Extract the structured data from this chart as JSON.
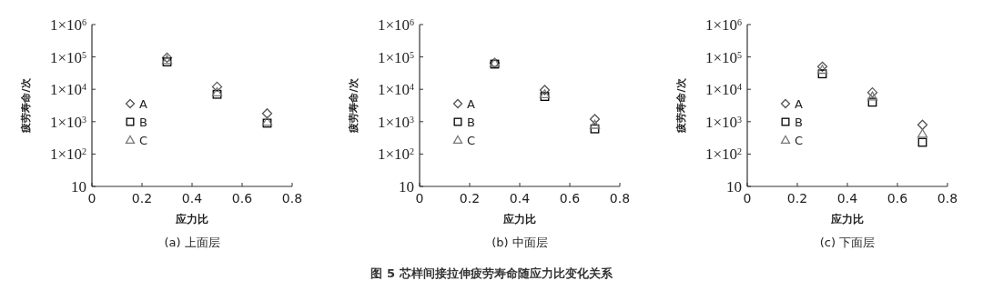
{
  "chart_data": [
    {
      "type": "scatter",
      "title": "(a) 上面层",
      "xlabel": "应力比",
      "ylabel": "疲劳寿命/次",
      "log": "y",
      "legend": "left",
      "x": [
        0.3,
        0.5,
        0.7
      ],
      "xlim": [
        0,
        0.8
      ],
      "xticks": [
        0,
        0.2,
        0.4,
        0.6,
        0.8
      ],
      "ylim": [
        10,
        1000000
      ],
      "yticks": [
        {
          "value": 10,
          "label": "10"
        },
        {
          "value": 100,
          "label": "1×10$^{2}$"
        },
        {
          "value": 1000,
          "label": "1×10$^{3}$"
        },
        {
          "value": 10000,
          "label": "1×10$^{4}$"
        },
        {
          "value": 100000,
          "label": "1×10$^{5}$"
        },
        {
          "value": 1000000,
          "label": "1×10$^{6}$"
        }
      ],
      "series": [
        {
          "name": "A",
          "color": "#555555",
          "marker": "diamond",
          "values": [
            95000,
            12000,
            1800
          ]
        },
        {
          "name": "B",
          "color": "#000000",
          "marker": "square",
          "values": [
            70000,
            7000,
            900
          ]
        },
        {
          "name": "C",
          "color": "#777777",
          "marker": "triangle",
          "values": [
            80000,
            8000,
            1000
          ]
        }
      ]
    },
    {
      "type": "scatter",
      "title": "(b) 中面层",
      "xlabel": "应力比",
      "ylabel": "疲劳寿命/次",
      "log": "y",
      "legend": "left",
      "x": [
        0.3,
        0.5,
        0.7
      ],
      "xlim": [
        0,
        0.8
      ],
      "xticks": [
        0,
        0.2,
        0.4,
        0.6,
        0.8
      ],
      "ylim": [
        10,
        1000000
      ],
      "yticks": [
        {
          "value": 10,
          "label": "10"
        },
        {
          "value": 100,
          "label": "1×10$^{2}$"
        },
        {
          "value": 1000,
          "label": "1×10$^{3}$"
        },
        {
          "value": 10000,
          "label": "1×10$^{4}$"
        },
        {
          "value": 100000,
          "label": "1×10$^{5}$"
        },
        {
          "value": 1000000,
          "label": "1×10$^{6}$"
        }
      ],
      "annotations": [
        "图 5  芯样间接拉伸疲劳寿命随应力比变化关系"
      ],
      "series": [
        {
          "name": "A",
          "color": "#555555",
          "marker": "diamond",
          "values": [
            65000,
            9500,
            1200
          ]
        },
        {
          "name": "B",
          "color": "#000000",
          "marker": "square",
          "values": [
            60000,
            6000,
            600
          ]
        },
        {
          "name": "C",
          "color": "#777777",
          "marker": "triangle",
          "values": [
            65000,
            7000,
            800
          ]
        }
      ]
    },
    {
      "type": "scatter",
      "title": "(c) 下面层",
      "xlabel": "应力比",
      "ylabel": "疲劳寿命/次",
      "log": "y",
      "legend": "left",
      "x": [
        0.3,
        0.5,
        0.7
      ],
      "xlim": [
        0,
        0.8
      ],
      "xticks": [
        0,
        0.2,
        0.4,
        0.6,
        0.8
      ],
      "ylim": [
        10,
        1000000
      ],
      "yticks": [
        {
          "value": 10,
          "label": "10"
        },
        {
          "value": 100,
          "label": "1×10$^{2}$"
        },
        {
          "value": 1000,
          "label": "1×10$^{3}$"
        },
        {
          "value": 10000,
          "label": "1×10$^{4}$"
        },
        {
          "value": 100000,
          "label": "1×10$^{5}$"
        },
        {
          "value": 1000000,
          "label": "1×10$^{6}$"
        }
      ],
      "series": [
        {
          "name": "A",
          "color": "#555555",
          "marker": "diamond",
          "values": [
            50000,
            8000,
            800
          ]
        },
        {
          "name": "B",
          "color": "#000000",
          "marker": "square",
          "values": [
            30000,
            4000,
            230
          ]
        },
        {
          "name": "C",
          "color": "#777777",
          "marker": "triangle",
          "values": [
            40000,
            6000,
            420
          ]
        }
      ]
    }
  ]
}
